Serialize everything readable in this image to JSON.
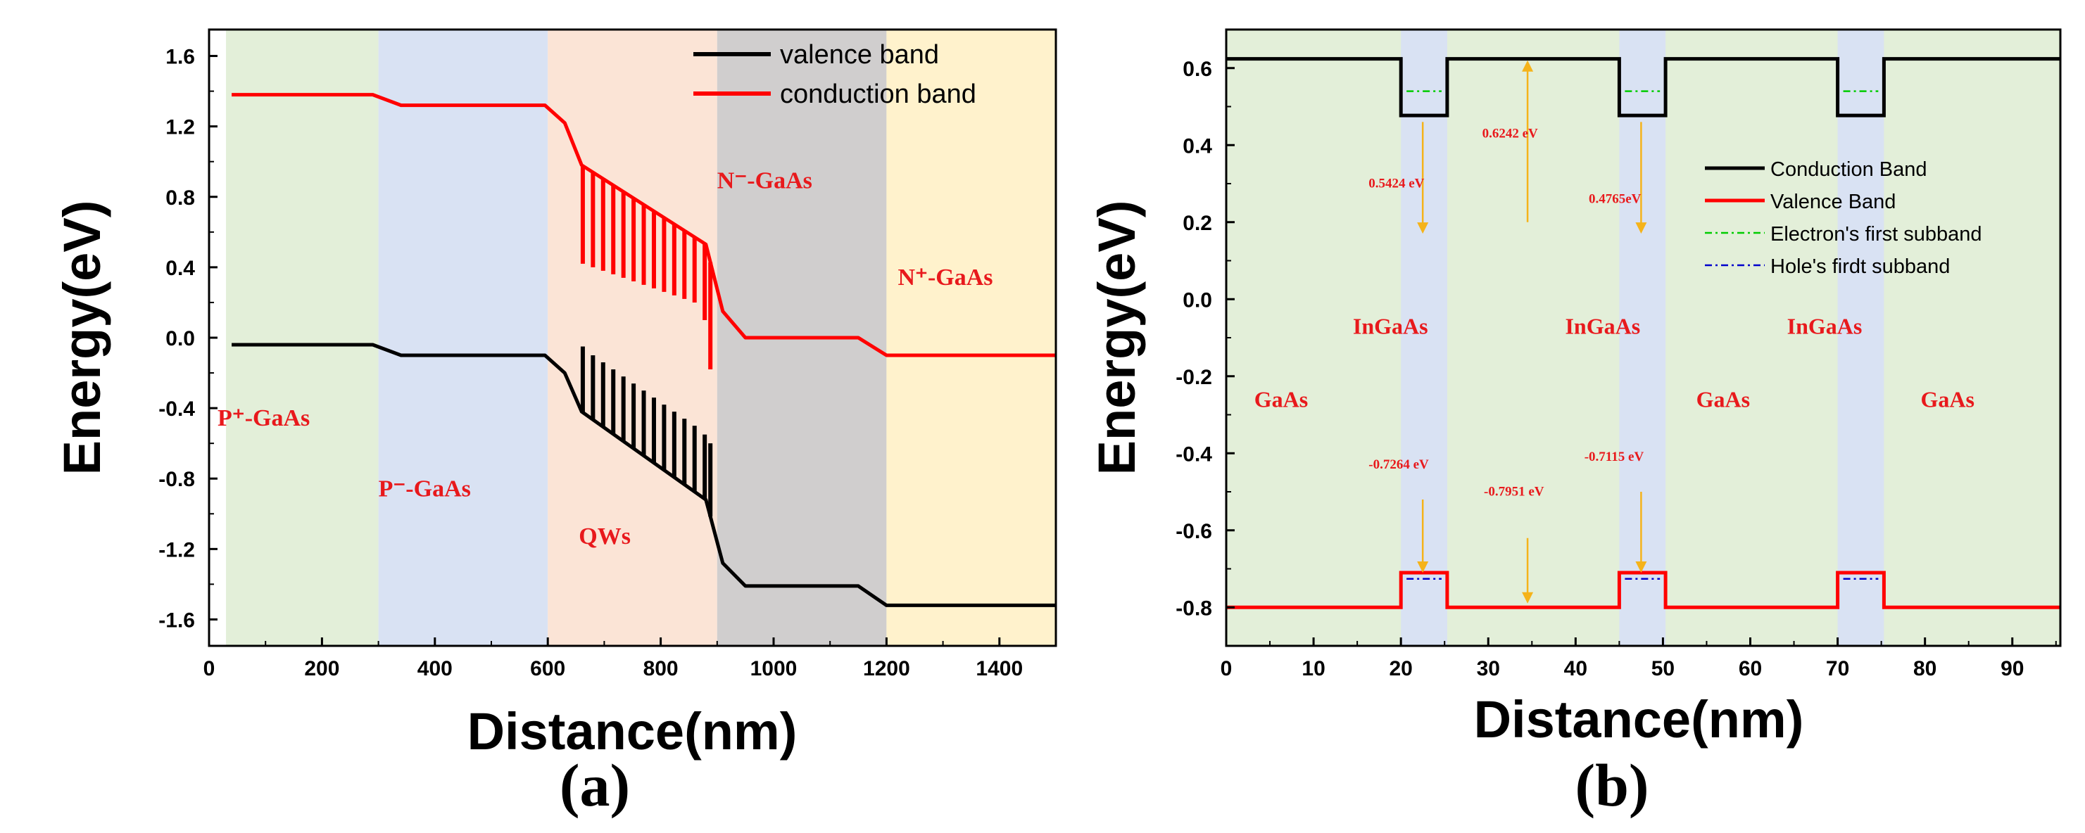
{
  "chart_data": [
    {
      "panel": "(a)",
      "type": "line",
      "xlabel": "Distance(nm)",
      "ylabel": "Energy(eV)",
      "xlim": [
        0,
        1500
      ],
      "ylim": [
        -1.75,
        1.75
      ],
      "xticks": [
        0,
        200,
        400,
        600,
        800,
        1000,
        1200,
        1400
      ],
      "yticks": [
        1.6,
        1.2,
        0.8,
        0.4,
        0.0,
        -0.4,
        -0.8,
        -1.2,
        -1.6
      ],
      "xtick_labels": [
        "0",
        "200",
        "400",
        "600",
        "800",
        "1000",
        "1200",
        "1400"
      ],
      "ytick_labels": [
        "1.6",
        "1.2",
        "0.8",
        "0.4",
        "0.0",
        "-0.4",
        "-0.8",
        "-1.2",
        "-1.6"
      ],
      "legend": [
        {
          "label": "valence band",
          "color": "#000000"
        },
        {
          "label": "conduction band",
          "color": "#ff0000"
        }
      ],
      "regions": [
        {
          "x0": 30,
          "x1": 300,
          "color": "#e3efd9",
          "label": "P⁺-GaAs",
          "lx": 15,
          "ly": -0.5
        },
        {
          "x0": 300,
          "x1": 600,
          "color": "#d9e2f3",
          "label": "P⁻-GaAs",
          "lx": 300,
          "ly": -0.9
        },
        {
          "x0": 600,
          "x1": 900,
          "color": "#fbe4d6",
          "label": "QWs",
          "lx": 655,
          "ly": -1.17
        },
        {
          "x0": 900,
          "x1": 1200,
          "color": "#d0cece",
          "label": "N⁻-GaAs",
          "lx": 900,
          "ly": 0.85
        },
        {
          "x0": 1200,
          "x1": 1500,
          "color": "#fff2cc",
          "label": "N⁺-GaAs",
          "lx": 1220,
          "ly": 0.3
        }
      ],
      "series": [
        {
          "name": "conduction band",
          "color": "#ff0000",
          "x": [
            40,
            290,
            340,
            595,
            630,
            660,
            880,
            910,
            950,
            1150,
            1200,
            1500
          ],
          "y": [
            1.38,
            1.38,
            1.32,
            1.32,
            1.22,
            0.98,
            0.53,
            0.15,
            0.0,
            0.0,
            -0.1,
            -0.1
          ]
        },
        {
          "name": "valence band",
          "color": "#000000",
          "x": [
            40,
            290,
            340,
            595,
            630,
            660,
            880,
            910,
            950,
            1150,
            1200,
            1500
          ],
          "y": [
            -0.04,
            -0.04,
            -0.1,
            -0.1,
            -0.2,
            -0.42,
            -0.92,
            -1.28,
            -1.41,
            -1.41,
            -1.52,
            -1.52
          ]
        }
      ],
      "wells": {
        "x": [
          662,
          680,
          698,
          716,
          734,
          752,
          770,
          788,
          806,
          824,
          842,
          860,
          878,
          888
        ],
        "cb_bottom": [
          0.42,
          0.4,
          0.38,
          0.36,
          0.34,
          0.32,
          0.3,
          0.28,
          0.26,
          0.24,
          0.22,
          0.2,
          0.1,
          -0.18
        ],
        "vb_top": [
          -0.05,
          -0.1,
          -0.14,
          -0.18,
          -0.22,
          -0.26,
          -0.3,
          -0.34,
          -0.38,
          -0.42,
          -0.46,
          -0.5,
          -0.55,
          -0.6
        ]
      }
    },
    {
      "panel": "(b)",
      "type": "line",
      "xlabel": "Distance(nm)",
      "ylabel": "Energy(eV)",
      "xlim": [
        0,
        95.5
      ],
      "ylim": [
        -0.9,
        0.7
      ],
      "xticks": [
        0,
        10,
        20,
        30,
        40,
        50,
        60,
        70,
        80,
        90
      ],
      "yticks": [
        0.6,
        0.4,
        0.2,
        0.0,
        -0.2,
        -0.4,
        -0.6,
        -0.8
      ],
      "xtick_labels": [
        "0",
        "10",
        "20",
        "30",
        "40",
        "50",
        "60",
        "70",
        "80",
        "90"
      ],
      "ytick_labels": [
        "0.6",
        "0.4",
        "0.2",
        "0.0",
        "-0.2",
        "-0.4",
        "-0.6",
        "-0.8"
      ],
      "legend": [
        {
          "label": "Conduction Band",
          "color": "#000000",
          "style": "solid"
        },
        {
          "label": "Valence Band",
          "color": "#ff0000",
          "style": "solid"
        },
        {
          "label": "Electron's first subband",
          "color": "#00cc00",
          "style": "dashdot"
        },
        {
          "label": "Hole's firdt subband",
          "color": "#0000cc",
          "style": "dashdot"
        }
      ],
      "background_color": "#e3efd9",
      "well_color": "#d9e2f3",
      "wells": [
        [
          20,
          25.3
        ],
        [
          45,
          50.3
        ],
        [
          70,
          75.3
        ]
      ],
      "region_labels": [
        {
          "label": "GaAs",
          "x": 3.2,
          "y": -0.28
        },
        {
          "label": "InGaAs",
          "x": 14.5,
          "y": -0.09
        },
        {
          "label": "InGaAs",
          "x": 38.8,
          "y": -0.09
        },
        {
          "label": "GaAs",
          "x": 53.8,
          "y": -0.28
        },
        {
          "label": "InGaAs",
          "x": 64.2,
          "y": -0.09
        },
        {
          "label": "GaAs",
          "x": 79.5,
          "y": -0.28
        }
      ],
      "series": [
        {
          "name": "Conduction Band",
          "color": "#000000",
          "x": [
            0,
            20,
            20,
            25.3,
            25.3,
            45,
            45,
            50.3,
            50.3,
            70,
            70,
            75.3,
            75.3,
            95.5
          ],
          "y": [
            0.624,
            0.624,
            0.477,
            0.477,
            0.624,
            0.624,
            0.477,
            0.477,
            0.624,
            0.624,
            0.477,
            0.477,
            0.624,
            0.624
          ]
        },
        {
          "name": "Valence Band",
          "color": "#ff0000",
          "x": [
            0,
            20,
            20,
            25.3,
            25.3,
            45,
            45,
            50.3,
            50.3,
            70,
            70,
            75.3,
            75.3,
            95.5
          ],
          "y": [
            -0.8,
            -0.8,
            -0.71,
            -0.71,
            -0.8,
            -0.8,
            -0.71,
            -0.71,
            -0.8,
            -0.8,
            -0.71,
            -0.71,
            -0.8,
            -0.8
          ]
        }
      ],
      "subband_electron": -0.0,
      "electron_subband_level": 0.54,
      "hole_subband_level": -0.726,
      "annotations": [
        {
          "text": "0.5424 eV",
          "x": 16.3,
          "y": 0.29
        },
        {
          "text": "0.6242 eV",
          "x": 29.3,
          "y": 0.42
        },
        {
          "text": "0.4765eV",
          "x": 41.5,
          "y": 0.25
        },
        {
          "text": "-0.7264 eV",
          "x": 16.3,
          "y": -0.44
        },
        {
          "text": "-0.7951 eV",
          "x": 29.5,
          "y": -0.51
        },
        {
          "text": "-0.7115 eV",
          "x": 41.0,
          "y": -0.42
        }
      ],
      "arrows": [
        {
          "x": 22.5,
          "y0": 0.46,
          "y1": 0.17
        },
        {
          "x": 34.5,
          "y0": 0.2,
          "y1": 0.62
        },
        {
          "x": 47.5,
          "y0": 0.46,
          "y1": 0.17
        },
        {
          "x": 22.5,
          "y0": -0.52,
          "y1": -0.71
        },
        {
          "x": 34.5,
          "y0": -0.62,
          "y1": -0.79
        },
        {
          "x": 47.5,
          "y0": -0.5,
          "y1": -0.71
        }
      ]
    }
  ]
}
